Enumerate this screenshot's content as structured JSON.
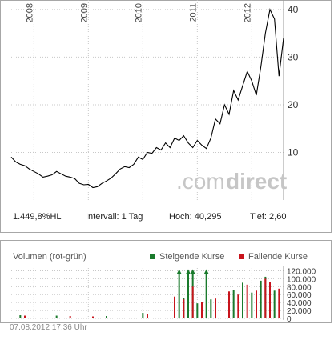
{
  "stats": {
    "performance": "1.449,8%HL",
    "interval": "Intervall: 1 Tag",
    "high": "Hoch:  40,295",
    "low": "Tief:   2,60"
  },
  "watermark": {
    "prefix": ".com",
    "suffix": "direct"
  },
  "volume_header": {
    "title": "Volumen (rot-grün)",
    "rising_label": "Steigende Kurse",
    "falling_label": "Fallende Kurse"
  },
  "colors": {
    "rising": "#1a7a2c",
    "falling": "#c8141c",
    "line": "#000000",
    "grid": "#c8c8c8",
    "axis_text": "#333333"
  },
  "timestamp": "07.08.2012 17:36 Uhr",
  "chart_data": [
    {
      "type": "line",
      "title": "",
      "xlabel": "",
      "ylabel": "",
      "x_ticks": [
        "2008",
        "2009",
        "2010",
        "2011",
        "2012"
      ],
      "y_ticks": [
        10,
        20,
        30,
        40
      ],
      "ylim": [
        0,
        42
      ],
      "xlim": [
        "2007-08",
        "2012-08"
      ],
      "series": [
        {
          "x": [
            "2007-08",
            "2007-09",
            "2007-10",
            "2007-11",
            "2007-12",
            "2008-01",
            "2008-02",
            "2008-03",
            "2008-04",
            "2008-05",
            "2008-06",
            "2008-07",
            "2008-08",
            "2008-09",
            "2008-10",
            "2008-11",
            "2008-12",
            "2009-01",
            "2009-02",
            "2009-03",
            "2009-04",
            "2009-05",
            "2009-06",
            "2009-07",
            "2009-08",
            "2009-09",
            "2009-10",
            "2009-11",
            "2009-12",
            "2010-01",
            "2010-02",
            "2010-03",
            "2010-04",
            "2010-05",
            "2010-06",
            "2010-07",
            "2010-08",
            "2010-09",
            "2010-10",
            "2010-11",
            "2010-12",
            "2011-01",
            "2011-02",
            "2011-03",
            "2011-04",
            "2011-05",
            "2011-06",
            "2011-07",
            "2011-08",
            "2011-09",
            "2011-10",
            "2011-11",
            "2011-12",
            "2012-01",
            "2012-02",
            "2012-03",
            "2012-04",
            "2012-05",
            "2012-06",
            "2012-07",
            "2012-08"
          ],
          "values": [
            9,
            8,
            7.5,
            7.2,
            6.5,
            6,
            5.5,
            4.8,
            5,
            5.3,
            6,
            5.5,
            5,
            4.8,
            4.5,
            3.5,
            3.2,
            3.3,
            2.6,
            2.8,
            3.5,
            4,
            4.6,
            5.5,
            6.5,
            7,
            6.8,
            7.5,
            9,
            8.5,
            10,
            9.8,
            11,
            10.5,
            12,
            11,
            13,
            12.5,
            13.5,
            12,
            11,
            12.5,
            11.5,
            10.8,
            13,
            17,
            16,
            20,
            18,
            23,
            21,
            24,
            27,
            25,
            22,
            28,
            35,
            40,
            38,
            26,
            34
          ]
        }
      ]
    },
    {
      "type": "bar",
      "title": "Volumen (rot-grün)",
      "y_ticks": [
        0,
        20000,
        40000,
        60000,
        80000,
        100000,
        120000
      ],
      "y_tick_labels": [
        "0",
        "20.000",
        "40.000",
        "60.000",
        "80.000",
        "100.000",
        "120.000"
      ],
      "ylim": [
        0,
        125000
      ],
      "series": [
        {
          "name": "Steigende Kurse",
          "x": [
            "2010-09",
            "2010-11",
            "2010-12",
            "2011-03"
          ],
          "values": [
            118000,
            118000,
            118000,
            118000
          ],
          "overflow": true
        },
        {
          "name": "Steigende Kurse",
          "x": [
            "2007-10",
            "2008-06",
            "2009-05",
            "2010-01",
            "2010-08",
            "2010-10",
            "2010-11",
            "2011-01",
            "2011-04",
            "2011-09",
            "2011-11",
            "2012-01",
            "2012-03",
            "2012-04",
            "2012-05",
            "2012-06"
          ],
          "values": [
            8000,
            7000,
            6000,
            14000,
            45000,
            52000,
            60000,
            38000,
            48000,
            72000,
            90000,
            65000,
            95000,
            105000,
            88000,
            70000
          ]
        },
        {
          "name": "Fallende Kurse",
          "x": [
            "2007-11",
            "2008-09",
            "2009-02",
            "2010-02",
            "2010-08",
            "2010-10",
            "2010-12",
            "2011-02",
            "2011-05",
            "2011-08",
            "2011-10",
            "2011-12",
            "2012-02",
            "2012-04",
            "2012-05",
            "2012-07"
          ],
          "values": [
            7000,
            6000,
            5000,
            12000,
            55000,
            48000,
            80000,
            42000,
            50000,
            68000,
            60000,
            85000,
            70000,
            100000,
            92000,
            75000
          ]
        }
      ]
    }
  ]
}
